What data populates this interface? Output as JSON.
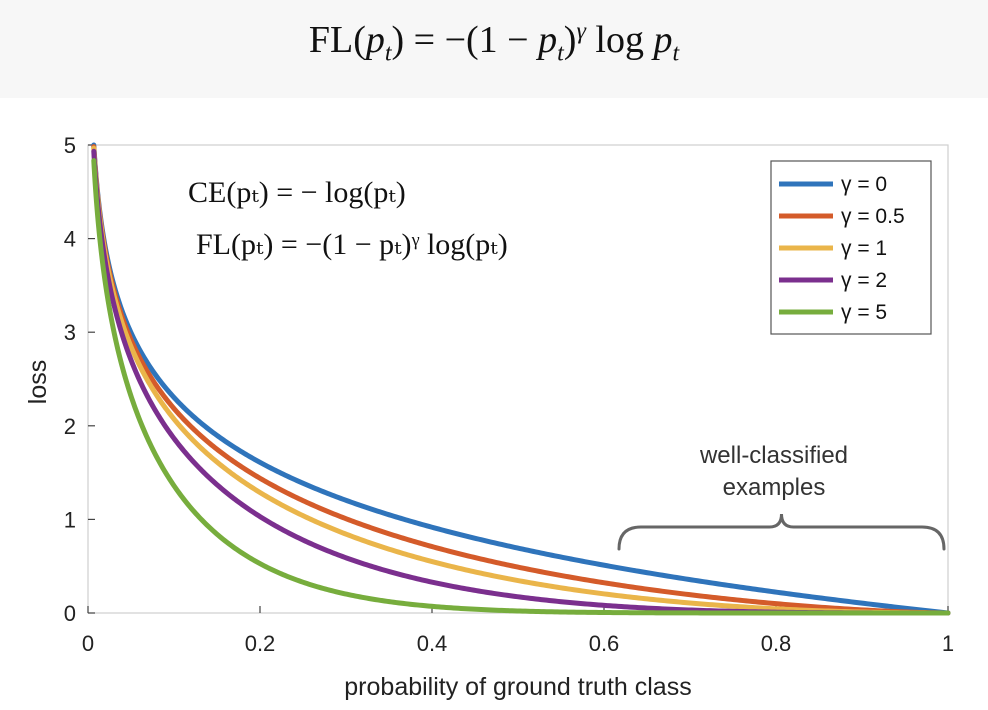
{
  "banner": {
    "formula_html": "FL(<i>p</i><sub>t</sub>) = −(1 − <i>p</i><sub>t</sub>)<sup>γ</sup> log <i>p</i><sub>t</sub>"
  },
  "equations": {
    "ce": "CE(pₜ) = − log(pₜ)",
    "fl": "FL(pₜ) = −(1 − pₜ)ᵞ log(pₜ)"
  },
  "annotation": {
    "line1": "well-classified",
    "line2": "examples",
    "x_range": [
      0.6,
      1.0
    ]
  },
  "chart_data": {
    "type": "line",
    "title": "",
    "xlabel": "probability of ground truth class",
    "ylabel": "loss",
    "xlim": [
      0,
      1
    ],
    "ylim": [
      0,
      5
    ],
    "xticks": [
      0,
      0.2,
      0.4,
      0.6,
      0.8,
      1
    ],
    "xtick_labels": [
      "0",
      "0.2",
      "0.4",
      "0.6",
      "0.8",
      "1"
    ],
    "yticks": [
      0,
      1,
      2,
      3,
      4,
      5
    ],
    "ytick_labels": [
      "0",
      "1",
      "2",
      "3",
      "4",
      "5"
    ],
    "grid": false,
    "legend_position": "top-right",
    "function": "-(1-p)^gamma * ln(p)",
    "x": [
      0.01,
      0.02,
      0.05,
      0.1,
      0.2,
      0.3,
      0.4,
      0.5,
      0.6,
      0.7,
      0.8,
      0.9,
      1.0
    ],
    "series": [
      {
        "name": "γ = 0",
        "gamma": 0,
        "color": "#2f74bb",
        "values": [
          4.61,
          3.91,
          3.0,
          2.3,
          1.61,
          1.2,
          0.92,
          0.69,
          0.51,
          0.36,
          0.22,
          0.11,
          0.0
        ]
      },
      {
        "name": "γ = 0.5",
        "gamma": 0.5,
        "color": "#d45b2a",
        "values": [
          4.58,
          3.87,
          2.92,
          2.18,
          1.44,
          1.01,
          0.71,
          0.49,
          0.32,
          0.2,
          0.1,
          0.03,
          0.0
        ]
      },
      {
        "name": "γ = 1",
        "gamma": 1,
        "color": "#eab54a",
        "values": [
          4.56,
          3.83,
          2.85,
          2.07,
          1.29,
          0.84,
          0.55,
          0.35,
          0.2,
          0.11,
          0.04,
          0.01,
          0.0
        ]
      },
      {
        "name": "γ = 2",
        "gamma": 2,
        "color": "#7b2f8e",
        "values": [
          4.51,
          3.76,
          2.7,
          1.87,
          1.03,
          0.59,
          0.33,
          0.17,
          0.08,
          0.03,
          0.01,
          0.0,
          0.0
        ]
      },
      {
        "name": "γ = 5",
        "gamma": 5,
        "color": "#77ad3d",
        "values": [
          4.38,
          3.54,
          2.32,
          1.36,
          0.53,
          0.2,
          0.07,
          0.02,
          0.0,
          0.0,
          0.0,
          0.0,
          0.0
        ]
      }
    ]
  }
}
